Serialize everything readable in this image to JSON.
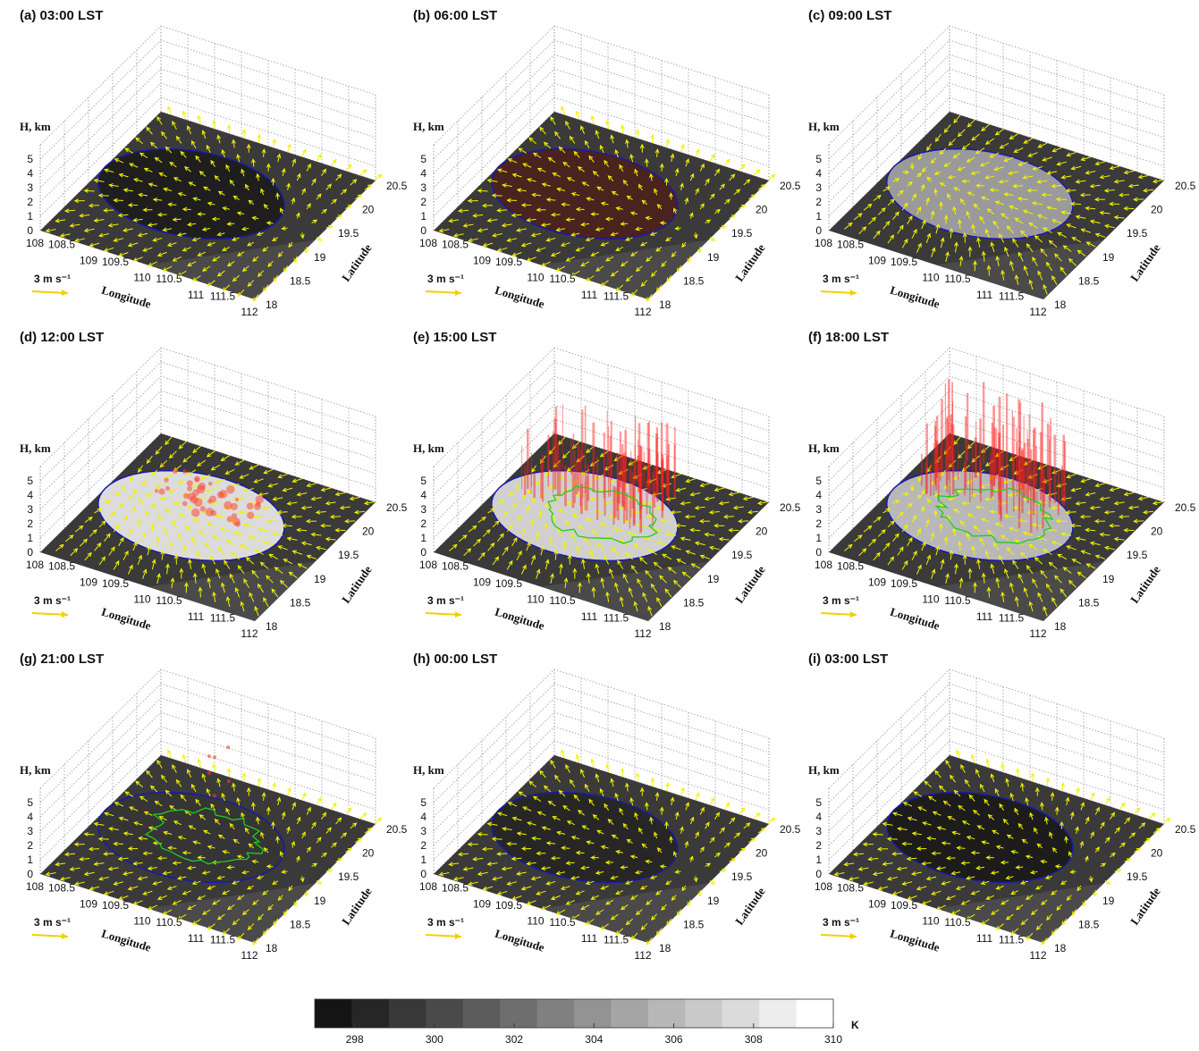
{
  "chart_data": [
    {
      "type": "surface3d",
      "title": "(a) 03:00 LST",
      "xlabel": "Longitude",
      "ylabel": "Latitude",
      "zlabel": "H, km",
      "xlim": [
        108,
        112
      ],
      "ylim": [
        18,
        20.5
      ],
      "zlim": [
        0,
        6
      ],
      "xticks": [
        108,
        108.5,
        109,
        109.5,
        110,
        110.5,
        111,
        111.5,
        112
      ],
      "yticks": [
        18,
        18.5,
        19,
        19.5,
        20,
        20.5
      ],
      "zticks": [
        0,
        1,
        2,
        3,
        4,
        5
      ],
      "arrow_key": {
        "value": 3,
        "label": "3 m s⁻¹"
      },
      "island_color": "#1e1e1e"
    },
    {
      "type": "surface3d",
      "title": "(b) 06:00 LST",
      "xlabel": "Longitude",
      "ylabel": "Latitude",
      "zlabel": "H, km",
      "xlim": [
        108,
        112
      ],
      "ylim": [
        18,
        20.5
      ],
      "zlim": [
        0,
        6
      ],
      "xticks": [
        108,
        108.5,
        109,
        109.5,
        110,
        110.5,
        111,
        111.5,
        112
      ],
      "yticks": [
        18,
        18.5,
        19,
        19.5,
        20,
        20.5
      ],
      "zticks": [
        0,
        1,
        2,
        3,
        4,
        5
      ],
      "arrow_key": {
        "value": 3,
        "label": "3 m s⁻¹"
      },
      "island_color": "#4a221e"
    },
    {
      "type": "surface3d",
      "title": "(c) 09:00 LST",
      "xlabel": "Longitude",
      "ylabel": "Latitude",
      "zlabel": "H, km",
      "xlim": [
        108,
        112
      ],
      "ylim": [
        18,
        20.5
      ],
      "zlim": [
        0,
        6
      ],
      "xticks": [
        108,
        108.5,
        109,
        109.5,
        110,
        110.5,
        111,
        111.5,
        112
      ],
      "yticks": [
        18,
        18.5,
        19,
        19.5,
        20,
        20.5
      ],
      "zticks": [
        0,
        1,
        2,
        3,
        4,
        5
      ],
      "arrow_key": {
        "value": 3,
        "label": "3 m s⁻¹"
      },
      "island_color": "#9a9a9a"
    },
    {
      "type": "surface3d",
      "title": "(d) 12:00 LST",
      "xlabel": "Longitude",
      "ylabel": "Latitude",
      "zlabel": "H, km",
      "xlim": [
        108,
        112
      ],
      "ylim": [
        18,
        20.5
      ],
      "zlim": [
        0,
        6
      ],
      "xticks": [
        108,
        108.5,
        109,
        109.5,
        110,
        110.5,
        111,
        111.5,
        112
      ],
      "yticks": [
        18,
        18.5,
        19,
        19.5,
        20,
        20.5
      ],
      "zticks": [
        0,
        1,
        2,
        3,
        4,
        5
      ],
      "arrow_key": {
        "value": 3,
        "label": "3 m s⁻¹"
      },
      "island_color": "#dcdcdc"
    },
    {
      "type": "surface3d",
      "title": "(e) 15:00 LST",
      "xlabel": "Longitude",
      "ylabel": "Latitude",
      "zlabel": "H, km",
      "xlim": [
        108,
        112
      ],
      "ylim": [
        18,
        20.5
      ],
      "zlim": [
        0,
        6
      ],
      "xticks": [
        108,
        108.5,
        109,
        109.5,
        110,
        110.5,
        111,
        111.5,
        112
      ],
      "yticks": [
        18,
        18.5,
        19,
        19.5,
        20,
        20.5
      ],
      "zticks": [
        0,
        1,
        2,
        3,
        4,
        5
      ],
      "arrow_key": {
        "value": 3,
        "label": "3 m s⁻¹"
      },
      "island_color": "#d0d0d0"
    },
    {
      "type": "surface3d",
      "title": "(f) 18:00 LST",
      "xlabel": "Longitude",
      "ylabel": "Latitude",
      "zlabel": "H, km",
      "xlim": [
        108,
        112
      ],
      "ylim": [
        18,
        20.5
      ],
      "zlim": [
        0,
        6
      ],
      "xticks": [
        108,
        108.5,
        109,
        109.5,
        110,
        110.5,
        111,
        111.5,
        112
      ],
      "yticks": [
        18,
        18.5,
        19,
        19.5,
        20,
        20.5
      ],
      "zticks": [
        0,
        1,
        2,
        3,
        4,
        5
      ],
      "arrow_key": {
        "value": 3,
        "label": "3 m s⁻¹"
      },
      "island_color": "#b8b8b8"
    },
    {
      "type": "surface3d",
      "title": "(g) 21:00 LST",
      "xlabel": "Longitude",
      "ylabel": "Latitude",
      "zlabel": "H, km",
      "xlim": [
        108,
        112
      ],
      "ylim": [
        18,
        20.5
      ],
      "zlim": [
        0,
        6
      ],
      "xticks": [
        108,
        108.5,
        109,
        109.5,
        110,
        110.5,
        111,
        111.5,
        112
      ],
      "yticks": [
        18,
        18.5,
        19,
        19.5,
        20,
        20.5
      ],
      "zticks": [
        0,
        1,
        2,
        3,
        4,
        5
      ],
      "arrow_key": {
        "value": 3,
        "label": "3 m s⁻¹"
      },
      "island_color": "#353535"
    },
    {
      "type": "surface3d",
      "title": "(h) 00:00 LST",
      "xlabel": "Longitude",
      "ylabel": "Latitude",
      "zlabel": "H, km",
      "xlim": [
        108,
        112
      ],
      "ylim": [
        18,
        20.5
      ],
      "zlim": [
        0,
        6
      ],
      "xticks": [
        108,
        108.5,
        109,
        109.5,
        110,
        110.5,
        111,
        111.5,
        112
      ],
      "yticks": [
        18,
        18.5,
        19,
        19.5,
        20,
        20.5
      ],
      "zticks": [
        0,
        1,
        2,
        3,
        4,
        5
      ],
      "arrow_key": {
        "value": 3,
        "label": "3 m s⁻¹"
      },
      "island_color": "#262626"
    },
    {
      "type": "surface3d",
      "title": "(i) 03:00 LST",
      "xlabel": "Longitude",
      "ylabel": "Latitude",
      "zlabel": "H, km",
      "xlim": [
        108,
        112
      ],
      "ylim": [
        18,
        20.5
      ],
      "zlim": [
        0,
        6
      ],
      "xticks": [
        108,
        108.5,
        109,
        109.5,
        110,
        110.5,
        111,
        111.5,
        112
      ],
      "yticks": [
        18,
        18.5,
        19,
        19.5,
        20,
        20.5
      ],
      "zticks": [
        0,
        1,
        2,
        3,
        4,
        5
      ],
      "arrow_key": {
        "value": 3,
        "label": "3 m s⁻¹"
      },
      "island_color": "#1c1c1c"
    }
  ],
  "colorbar": {
    "label": "K",
    "lim": [
      297,
      310
    ],
    "ticks": [
      298,
      300,
      302,
      304,
      306,
      308,
      310
    ]
  }
}
